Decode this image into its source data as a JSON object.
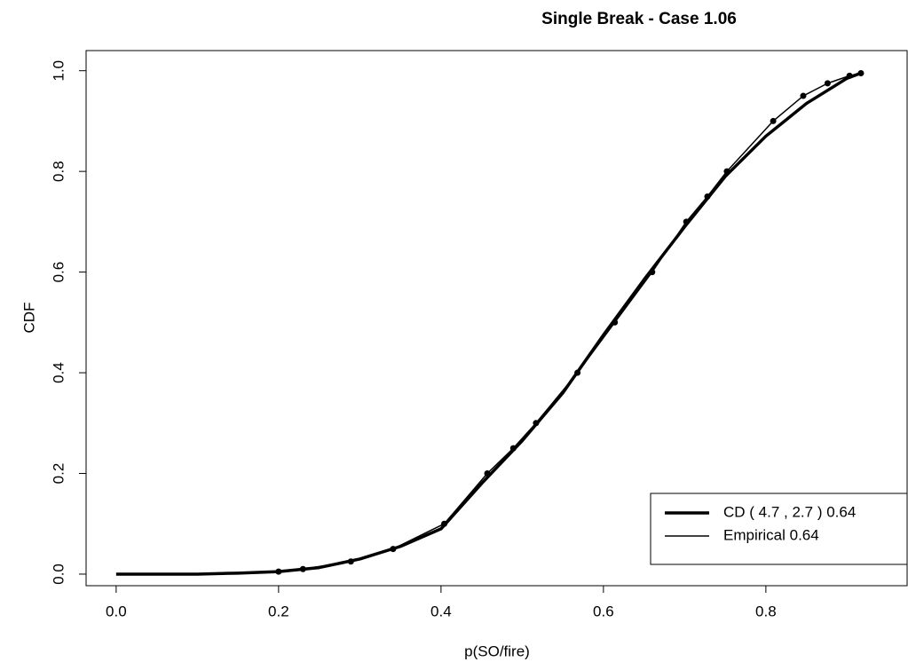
{
  "chart_data": {
    "type": "line",
    "title": "Single Break - Case 1.06",
    "x_label": "p(SO/fire)",
    "y_label": "CDF",
    "xlim": [
      -0.037,
      0.975
    ],
    "ylim": [
      -0.023,
      1.04
    ],
    "xticks": [
      {
        "value": 0,
        "label": "0.0"
      },
      0.2,
      0.4,
      0.6,
      0.8
    ],
    "yticks": [
      {
        "value": 0,
        "label": "0.0"
      },
      0.2,
      0.4,
      0.6,
      0.8,
      {
        "value": 1,
        "label": "1.0"
      }
    ],
    "legend": "bottomright",
    "series": [
      {
        "name": "CD ( 4.7 , 2.7 ) 0.64",
        "color": "#000000",
        "width": 3.5,
        "markers": false,
        "x": [
          0,
          0.1,
          0.15,
          0.2,
          0.25,
          0.3,
          0.35,
          0.4,
          0.45,
          0.5,
          0.55,
          0.6,
          0.65,
          0.7,
          0.75,
          0.8,
          0.85,
          0.9,
          0.92
        ],
        "values": [
          0,
          0,
          0.002,
          0.005,
          0.013,
          0.03,
          0.055,
          0.09,
          0.18,
          0.265,
          0.36,
          0.475,
          0.585,
          0.69,
          0.79,
          0.87,
          0.935,
          0.985,
          0.997
        ]
      },
      {
        "name": "Empirical 0.64",
        "color": "#000000",
        "width": 1.5,
        "markers": true,
        "x": [
          0.2,
          0.23,
          0.289,
          0.341,
          0.404,
          0.457,
          0.489,
          0.517,
          0.568,
          0.614,
          0.66,
          0.702,
          0.728,
          0.752,
          0.809,
          0.846,
          0.876,
          0.903,
          0.917
        ],
        "values": [
          0.005,
          0.01,
          0.025,
          0.05,
          0.1,
          0.2,
          0.25,
          0.3,
          0.4,
          0.5,
          0.6,
          0.7,
          0.75,
          0.8,
          0.9,
          0.95,
          0.975,
          0.99,
          0.995
        ]
      }
    ]
  }
}
